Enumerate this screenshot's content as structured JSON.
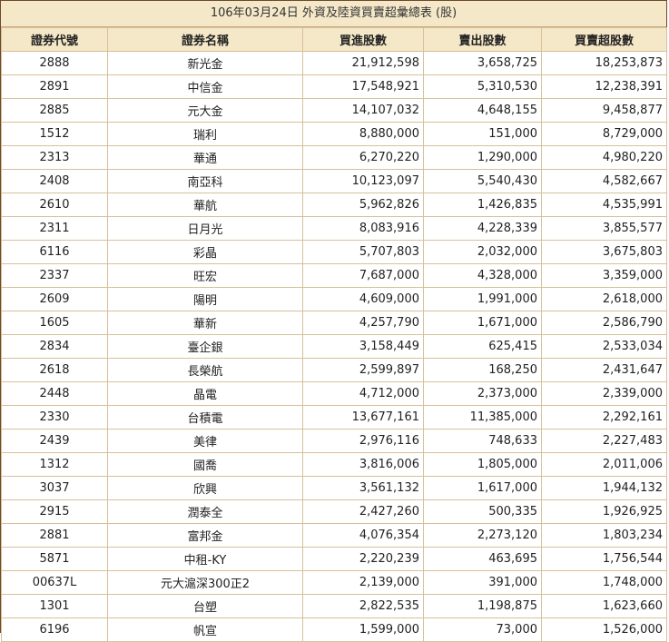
{
  "caption": "106年03月24日 外資及陸資買賣超彙總表 (股)",
  "headers": [
    "證券代號",
    "證券名稱",
    "買進股數",
    "賣出股數",
    "買賣超股數"
  ],
  "rows": [
    [
      "2888",
      "新光金",
      "21,912,598",
      "3,658,725",
      "18,253,873"
    ],
    [
      "2891",
      "中信金",
      "17,548,921",
      "5,310,530",
      "12,238,391"
    ],
    [
      "2885",
      "元大金",
      "14,107,032",
      "4,648,155",
      "9,458,877"
    ],
    [
      "1512",
      "瑞利",
      "8,880,000",
      "151,000",
      "8,729,000"
    ],
    [
      "2313",
      "華通",
      "6,270,220",
      "1,290,000",
      "4,980,220"
    ],
    [
      "2408",
      "南亞科",
      "10,123,097",
      "5,540,430",
      "4,582,667"
    ],
    [
      "2610",
      "華航",
      "5,962,826",
      "1,426,835",
      "4,535,991"
    ],
    [
      "2311",
      "日月光",
      "8,083,916",
      "4,228,339",
      "3,855,577"
    ],
    [
      "6116",
      "彩晶",
      "5,707,803",
      "2,032,000",
      "3,675,803"
    ],
    [
      "2337",
      "旺宏",
      "7,687,000",
      "4,328,000",
      "3,359,000"
    ],
    [
      "2609",
      "陽明",
      "4,609,000",
      "1,991,000",
      "2,618,000"
    ],
    [
      "1605",
      "華新",
      "4,257,790",
      "1,671,000",
      "2,586,790"
    ],
    [
      "2834",
      "臺企銀",
      "3,158,449",
      "625,415",
      "2,533,034"
    ],
    [
      "2618",
      "長榮航",
      "2,599,897",
      "168,250",
      "2,431,647"
    ],
    [
      "2448",
      "晶電",
      "4,712,000",
      "2,373,000",
      "2,339,000"
    ],
    [
      "2330",
      "台積電",
      "13,677,161",
      "11,385,000",
      "2,292,161"
    ],
    [
      "2439",
      "美律",
      "2,976,116",
      "748,633",
      "2,227,483"
    ],
    [
      "1312",
      "國喬",
      "3,816,006",
      "1,805,000",
      "2,011,006"
    ],
    [
      "3037",
      "欣興",
      "3,561,132",
      "1,617,000",
      "1,944,132"
    ],
    [
      "2915",
      "潤泰全",
      "2,427,260",
      "500,335",
      "1,926,925"
    ],
    [
      "2881",
      "富邦金",
      "4,076,354",
      "2,273,120",
      "1,803,234"
    ],
    [
      "5871",
      "中租-KY",
      "2,220,239",
      "463,695",
      "1,756,544"
    ],
    [
      "00637L",
      "元大滬深300正2",
      "2,139,000",
      "391,000",
      "1,748,000"
    ],
    [
      "1301",
      "台塑",
      "2,822,535",
      "1,198,875",
      "1,623,660"
    ],
    [
      "6196",
      "帆宣",
      "1,599,000",
      "73,000",
      "1,526,000"
    ]
  ]
}
